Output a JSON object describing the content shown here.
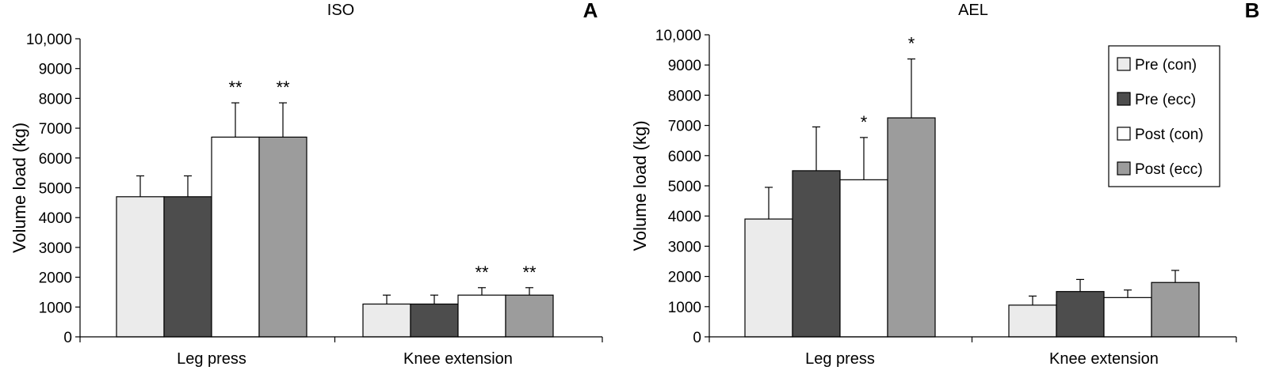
{
  "colors": {
    "pre_con": "#ebebeb",
    "pre_ecc": "#4d4d4d",
    "post_con": "#ffffff",
    "post_ecc": "#9c9c9c",
    "axis": "#000000"
  },
  "legend": [
    "Pre (con)",
    "Pre (ecc)",
    "Post (con)",
    "Post (ecc)"
  ],
  "chart_data": [
    {
      "type": "bar",
      "panel_letter": "A",
      "title": "ISO",
      "xlabel": "",
      "ylabel": "Volume load  (kg)",
      "ylim": [
        0,
        10000
      ],
      "yticks": [
        "0",
        "1000",
        "2000",
        "3000",
        "4000",
        "5000",
        "6000",
        "7000",
        "8000",
        "9000",
        "10,000"
      ],
      "categories": [
        "Leg press",
        "Knee extension"
      ],
      "series": [
        {
          "name": "Pre (con)",
          "values": [
            4700,
            1100
          ],
          "errors": [
            700,
            300
          ],
          "sig": [
            "",
            ""
          ]
        },
        {
          "name": "Pre (ecc)",
          "values": [
            4700,
            1100
          ],
          "errors": [
            700,
            300
          ],
          "sig": [
            "",
            ""
          ]
        },
        {
          "name": "Post (con)",
          "values": [
            6700,
            1400
          ],
          "errors": [
            1150,
            250
          ],
          "sig": [
            "**",
            "**"
          ]
        },
        {
          "name": "Post (ecc)",
          "values": [
            6700,
            1400
          ],
          "errors": [
            1150,
            250
          ],
          "sig": [
            "**",
            "**"
          ]
        }
      ]
    },
    {
      "type": "bar",
      "panel_letter": "B",
      "title": "AEL",
      "xlabel": "",
      "ylabel": "Volume load  (kg)",
      "ylim": [
        0,
        10000
      ],
      "yticks": [
        "0",
        "1000",
        "2000",
        "3000",
        "4000",
        "5000",
        "6000",
        "7000",
        "8000",
        "9000",
        "10,000"
      ],
      "categories": [
        "Leg press",
        "Knee extension"
      ],
      "series": [
        {
          "name": "Pre (con)",
          "values": [
            3900,
            1050
          ],
          "errors": [
            1050,
            300
          ],
          "sig": [
            "",
            ""
          ]
        },
        {
          "name": "Pre (ecc)",
          "values": [
            5500,
            1500
          ],
          "errors": [
            1450,
            400
          ],
          "sig": [
            "",
            ""
          ]
        },
        {
          "name": "Post (con)",
          "values": [
            5200,
            1300
          ],
          "errors": [
            1400,
            250
          ],
          "sig": [
            "*",
            ""
          ]
        },
        {
          "name": "Post (ecc)",
          "values": [
            7250,
            1800
          ],
          "errors": [
            1950,
            400
          ],
          "sig": [
            "*",
            ""
          ]
        }
      ]
    }
  ]
}
